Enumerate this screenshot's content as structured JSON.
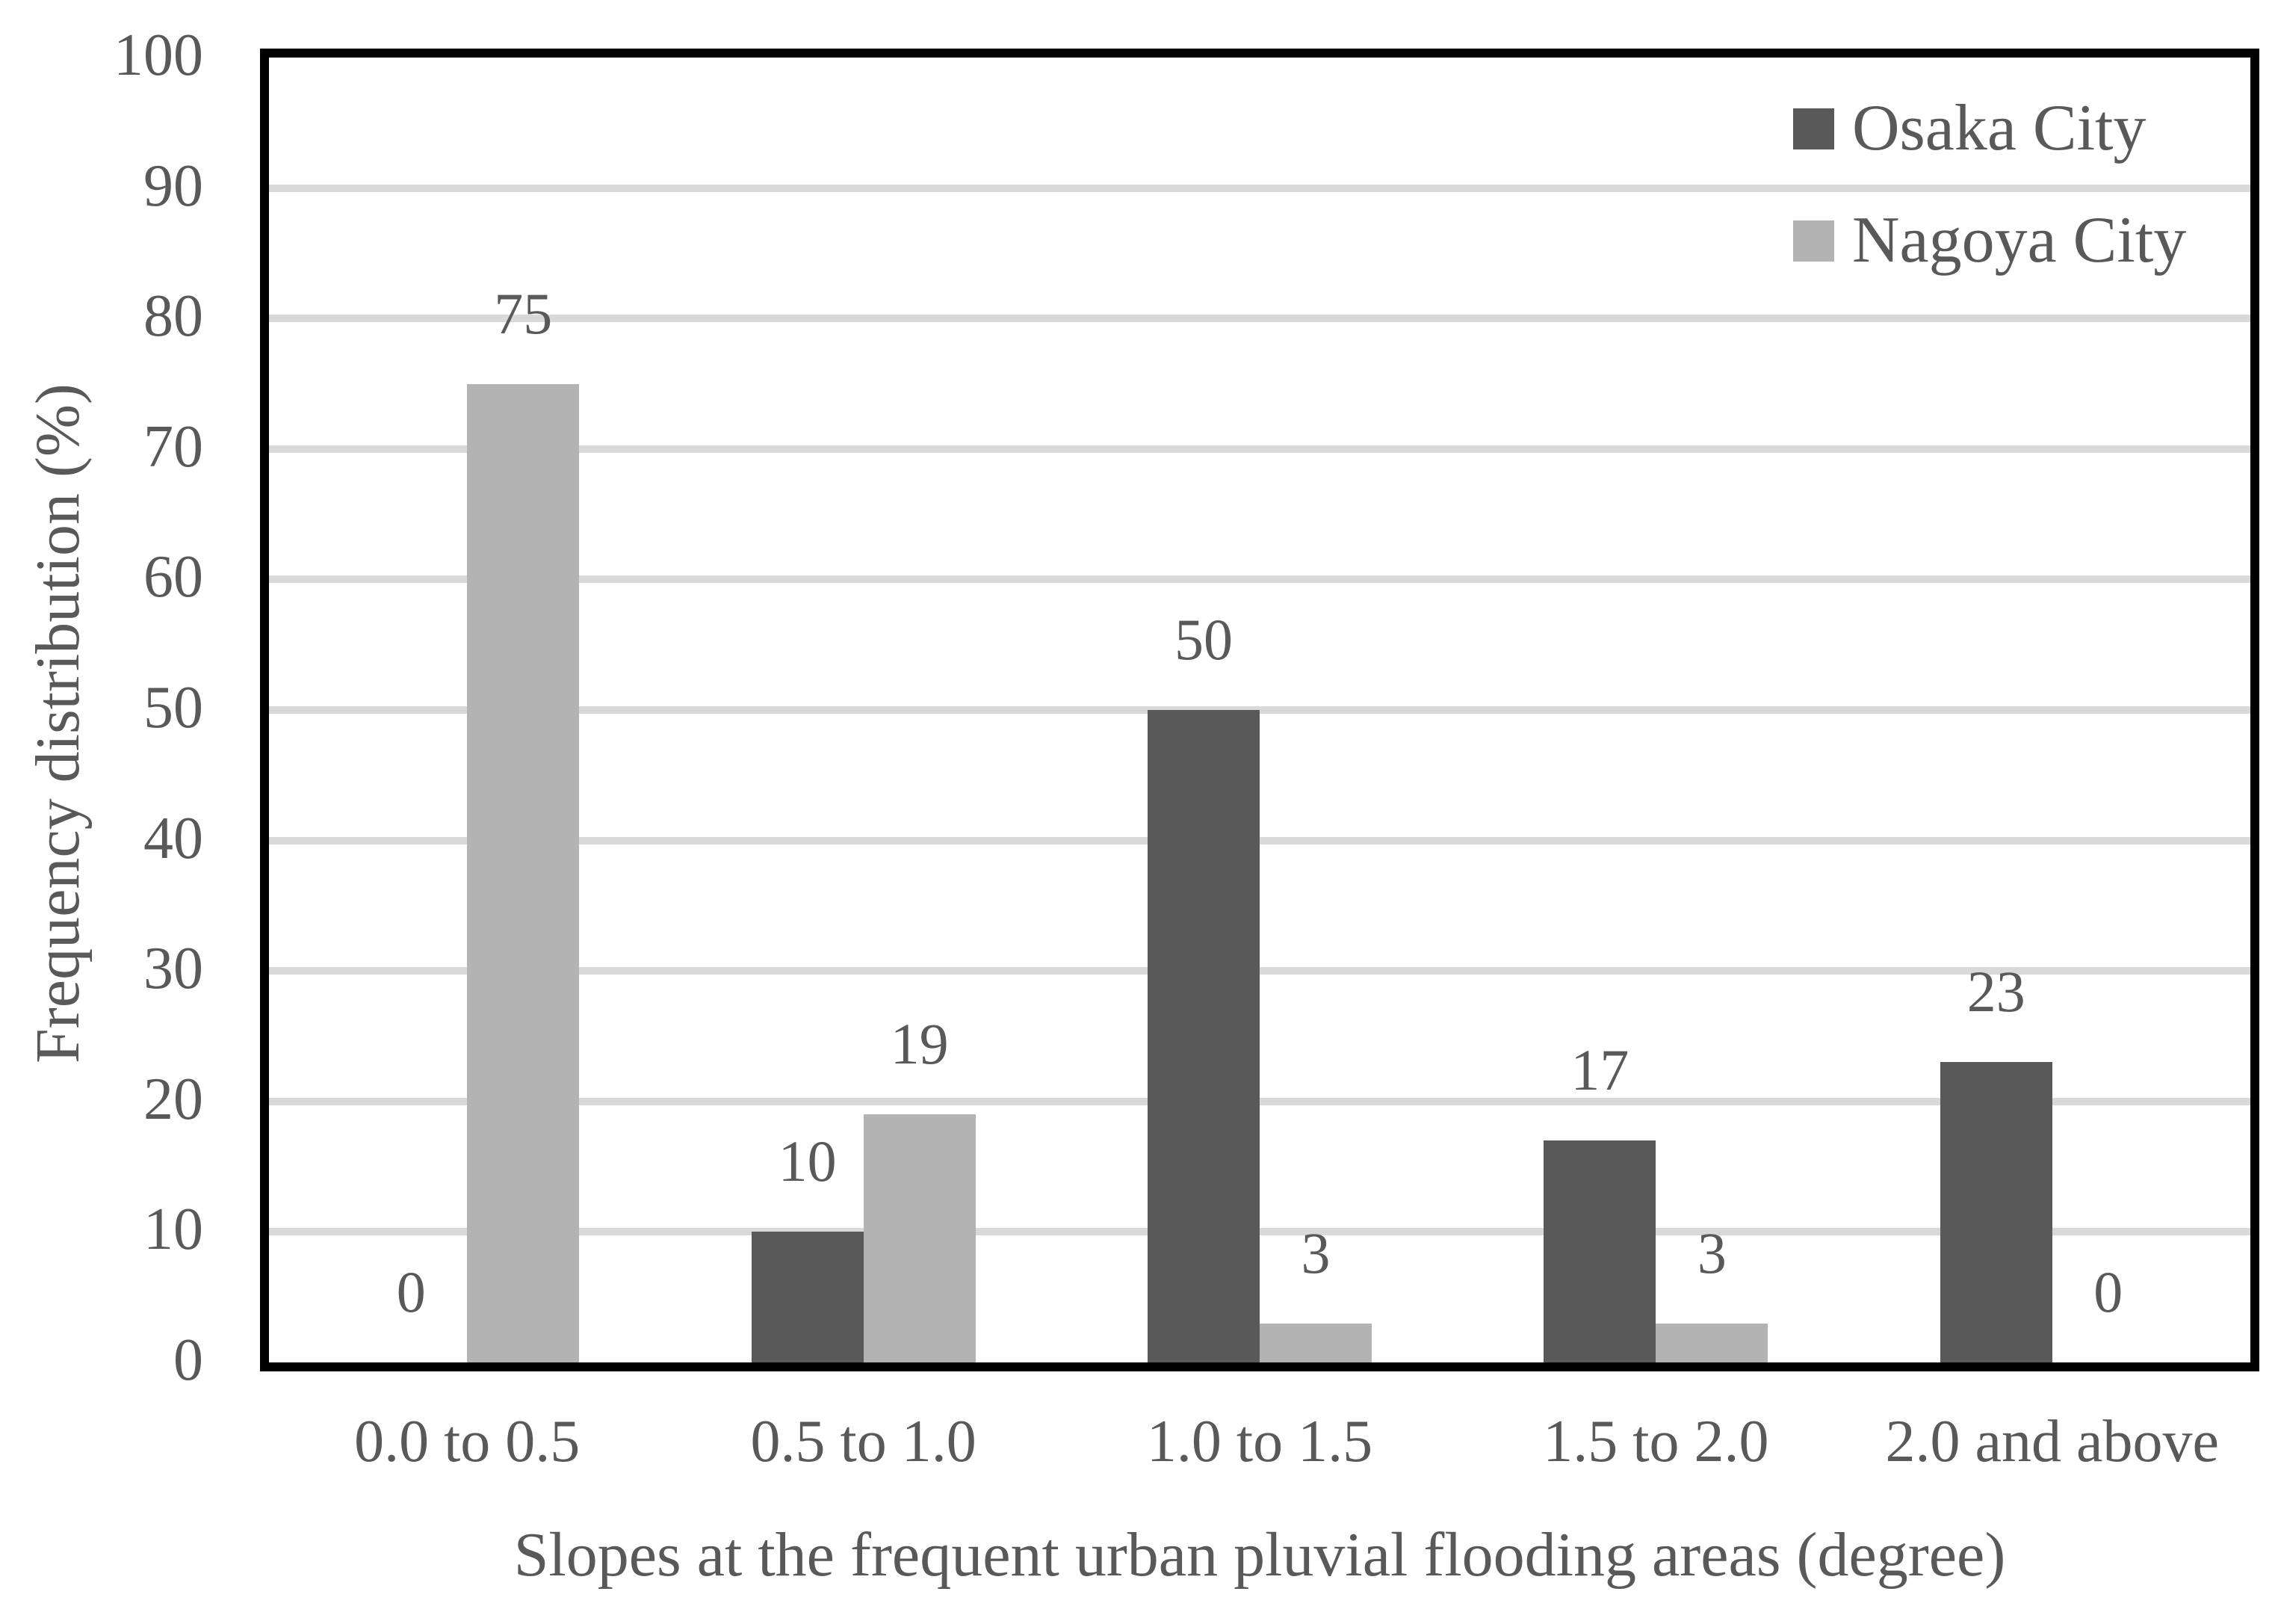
{
  "colors": {
    "osaka_series": "#595959",
    "nagoya_series": "#b3b3b3",
    "gridline": "#d9d9d9",
    "text": "#595959",
    "plot_border": "#000000",
    "background": "#ffffff"
  },
  "chart_data": {
    "type": "bar",
    "title": "",
    "categories": [
      "0.0 to 0.5",
      "0.5 to 1.0",
      "1.0 to 1.5",
      "1.5 to 2.0",
      "2.0 and above"
    ],
    "series": [
      {
        "name": "Osaka City",
        "color_key": "osaka_series",
        "values": [
          0,
          10,
          50,
          17,
          23
        ]
      },
      {
        "name": "Nagoya City",
        "color_key": "nagoya_series",
        "values": [
          75,
          19,
          3,
          3,
          0
        ]
      }
    ],
    "data_labels": {
      "enabled": true,
      "osaka": [
        "0",
        "10",
        "50",
        "17",
        "23"
      ],
      "nagoya": [
        "75",
        "19",
        "3",
        "3",
        "0"
      ]
    },
    "xlabel": "Slopes at the frequent urban pluvial flooding areas (degree)",
    "ylabel": "Frequency distribution (%)",
    "ylim": [
      0,
      100
    ],
    "yticks": [
      0,
      10,
      20,
      30,
      40,
      50,
      60,
      70,
      80,
      90,
      100
    ],
    "grid": "horizontal",
    "legend_position": "inside-top-right"
  }
}
